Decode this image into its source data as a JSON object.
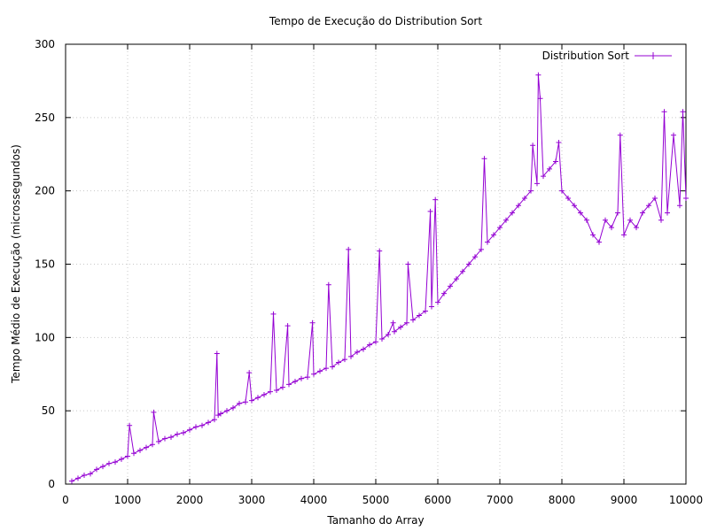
{
  "chart_data": {
    "type": "line",
    "title": "Tempo de Execução do Distribution Sort",
    "xlabel": "Tamanho do Array",
    "ylabel": "Tempo Médio de Execução (microssegundos)",
    "xlim": [
      0,
      10000
    ],
    "ylim": [
      0,
      300
    ],
    "x_ticks": [
      "0",
      "1000",
      "2000",
      "3000",
      "4000",
      "5000",
      "6000",
      "7000",
      "8000",
      "9000",
      "10000"
    ],
    "y_ticks": [
      "0",
      "50",
      "100",
      "150",
      "200",
      "250",
      "300"
    ],
    "grid": true,
    "legend_position": "top-right",
    "color": "#9400d3",
    "series": [
      {
        "name": "Distribution Sort",
        "x": [
          100,
          200,
          300,
          400,
          500,
          600,
          700,
          800,
          900,
          1000,
          1030,
          1100,
          1200,
          1300,
          1400,
          1420,
          1500,
          1600,
          1700,
          1800,
          1900,
          2000,
          2100,
          2200,
          2300,
          2400,
          2440,
          2460,
          2500,
          2600,
          2700,
          2800,
          2900,
          2960,
          3000,
          3100,
          3200,
          3300,
          3350,
          3400,
          3500,
          3580,
          3600,
          3700,
          3800,
          3900,
          3980,
          4000,
          4100,
          4200,
          4240,
          4300,
          4400,
          4500,
          4560,
          4600,
          4700,
          4800,
          4900,
          5000,
          5060,
          5100,
          5200,
          5280,
          5300,
          5400,
          5500,
          5520,
          5600,
          5700,
          5800,
          5880,
          5900,
          5960,
          6000,
          6100,
          6200,
          6300,
          6400,
          6500,
          6600,
          6700,
          6750,
          6800,
          6900,
          7000,
          7100,
          7200,
          7300,
          7400,
          7500,
          7530,
          7600,
          7620,
          7650,
          7700,
          7800,
          7900,
          7950,
          8000,
          8100,
          8200,
          8300,
          8400,
          8500,
          8600,
          8700,
          8800,
          8900,
          8940,
          9000,
          9100,
          9200,
          9300,
          9400,
          9500,
          9600,
          9650,
          9700,
          9800,
          9900,
          9950,
          10000
        ],
        "y": [
          2,
          4,
          6,
          7,
          10,
          12,
          14,
          15,
          17,
          19,
          40,
          21,
          23,
          25,
          27,
          49,
          29,
          31,
          32,
          34,
          35,
          37,
          39,
          40,
          42,
          44,
          89,
          47,
          48,
          50,
          52,
          55,
          56,
          76,
          57,
          59,
          61,
          63,
          116,
          64,
          66,
          108,
          68,
          70,
          72,
          73,
          110,
          75,
          77,
          79,
          136,
          80,
          83,
          85,
          160,
          87,
          90,
          92,
          95,
          97,
          159,
          99,
          102,
          110,
          104,
          107,
          110,
          150,
          112,
          115,
          118,
          186,
          121,
          194,
          124,
          130,
          135,
          140,
          145,
          150,
          155,
          160,
          222,
          165,
          170,
          175,
          180,
          185,
          190,
          195,
          200,
          231,
          205,
          279,
          263,
          210,
          215,
          220,
          233,
          200,
          195,
          190,
          185,
          180,
          170,
          165,
          180,
          175,
          185,
          238,
          170,
          180,
          175,
          185,
          190,
          195,
          180,
          254,
          185,
          238,
          190,
          254,
          195
        ]
      }
    ]
  }
}
